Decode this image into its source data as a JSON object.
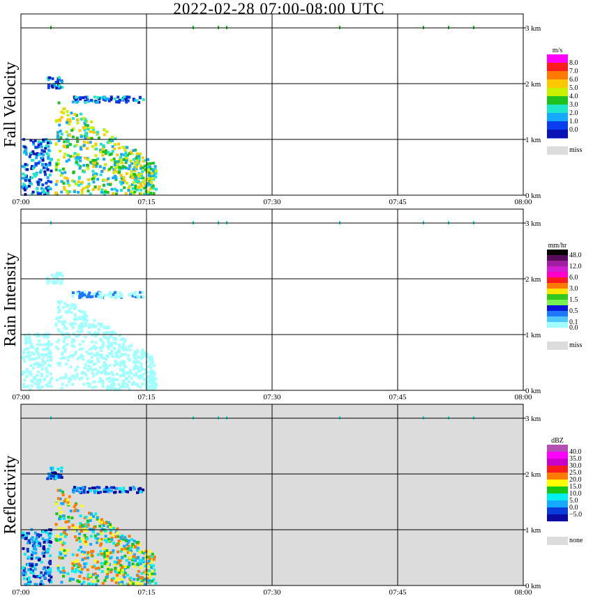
{
  "title": "2022-02-28   07:00-08:00 UTC",
  "time_ticks": [
    "07:00",
    "07:15",
    "07:30",
    "07:45",
    "08:00"
  ],
  "height_ticks": [
    "0 km",
    "1 km",
    "2 km",
    "3 km"
  ],
  "panels": [
    {
      "name": "Fall Velocity",
      "unit": "m/s",
      "background": "#ffffff",
      "colorbar": [
        {
          "color": "#ff00ff",
          "label": "8.0"
        },
        {
          "color": "#ff1c1c",
          "label": "7.0"
        },
        {
          "color": "#ff7a00",
          "label": "6.0"
        },
        {
          "color": "#ffc800",
          "label": "5.0"
        },
        {
          "color": "#c8f000",
          "label": "4.0"
        },
        {
          "color": "#1ec21e",
          "label": "3.0"
        },
        {
          "color": "#1ee6c8",
          "label": "2.0"
        },
        {
          "color": "#14aaff",
          "label": "1.0"
        },
        {
          "color": "#0a3cf0",
          "label": "0.0"
        },
        {
          "color": "#0a14b4",
          "label": ""
        }
      ],
      "miss_label": "miss"
    },
    {
      "name": "Rain Intensity",
      "unit": "mm/hr",
      "background": "#ffffff",
      "colorbar": [
        {
          "color": "#000000",
          "label": "48.0"
        },
        {
          "color": "#5a0a5a",
          "label": ""
        },
        {
          "color": "#a01ea0",
          "label": "12.0"
        },
        {
          "color": "#d21ed2",
          "label": ""
        },
        {
          "color": "#ff00c8",
          "label": "6.0"
        },
        {
          "color": "#ff1c1c",
          "label": ""
        },
        {
          "color": "#ff7a00",
          "label": "3.0"
        },
        {
          "color": "#ffe600",
          "label": ""
        },
        {
          "color": "#32c81e",
          "label": "1.5"
        },
        {
          "color": "#78f050",
          "label": ""
        },
        {
          "color": "#0a14dc",
          "label": "0.5"
        },
        {
          "color": "#1e78ff",
          "label": ""
        },
        {
          "color": "#50c8ff",
          "label": "0.1"
        },
        {
          "color": "#a0ffff",
          "label": "0.0"
        },
        {
          "color": "#ffffff",
          "label": ""
        }
      ],
      "miss_label": "miss"
    },
    {
      "name": "Reflectivity",
      "unit": "dBZ",
      "background": "#dcdcdc",
      "colorbar": [
        {
          "color": "#b450b4",
          "label": "40.0"
        },
        {
          "color": "#ff00ff",
          "label": "35.0"
        },
        {
          "color": "#c800c8",
          "label": "30.0"
        },
        {
          "color": "#ff1c1c",
          "label": "25.0"
        },
        {
          "color": "#ff7a00",
          "label": "20.0"
        },
        {
          "color": "#ffff00",
          "label": "15.0"
        },
        {
          "color": "#14c814",
          "label": "10.0"
        },
        {
          "color": "#00f0f0",
          "label": "5.0"
        },
        {
          "color": "#14aaff",
          "label": "0.0"
        },
        {
          "color": "#0a3cdc",
          "label": "−5.0"
        },
        {
          "color": "#0a0aa0",
          "label": ""
        },
        {
          "color": "#ffffff",
          "label": ""
        }
      ],
      "miss_label": "none"
    }
  ],
  "chart_data": {
    "type": "heatmap",
    "title": "2022-02-28   07:00-08:00 UTC",
    "x_range": [
      "07:00",
      "08:00"
    ],
    "y_range_km": [
      0,
      3.2
    ],
    "grid": true,
    "series": [
      {
        "name": "Fall Velocity",
        "unit": "m/s",
        "scale": [
          0.0,
          1.0,
          2.0,
          3.0,
          4.0,
          5.0,
          6.0,
          7.0,
          8.0
        ]
      },
      {
        "name": "Rain Intensity",
        "unit": "mm/hr",
        "scale": [
          0.0,
          0.1,
          0.5,
          1.5,
          3.0,
          6.0,
          12.0,
          48.0
        ]
      },
      {
        "name": "Reflectivity",
        "unit": "dBZ",
        "scale": [
          -5.0,
          0.0,
          5.0,
          10.0,
          15.0,
          20.0,
          25.0,
          30.0,
          35.0,
          40.0
        ]
      }
    ],
    "echoes": [
      {
        "kind": "fallstreak",
        "t_start_min": 4.0,
        "t_end_min": 16.0,
        "h_bottom_km": 0.0,
        "h_top_km": 1.75
      },
      {
        "kind": "low_layer",
        "t_start_min": 0.0,
        "t_end_min": 3.5,
        "h_bottom_km": 0.0,
        "h_top_km": 1.0
      },
      {
        "kind": "band",
        "t_start_min": 6.0,
        "t_end_min": 14.5,
        "h_bottom_km": 1.65,
        "h_top_km": 1.75
      },
      {
        "kind": "patch",
        "t_start_min": 3.0,
        "t_end_min": 4.8,
        "h_bottom_km": 1.9,
        "h_top_km": 2.1
      }
    ]
  }
}
